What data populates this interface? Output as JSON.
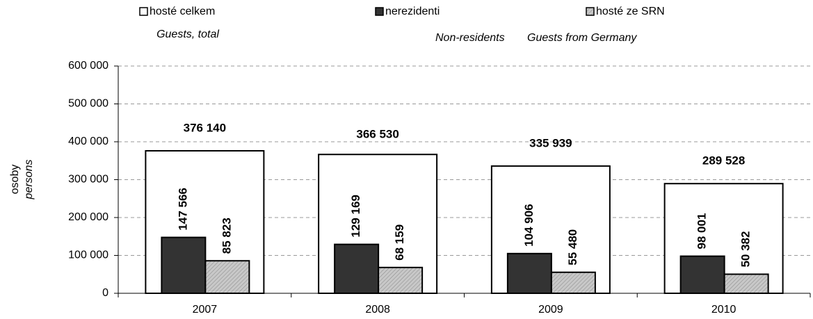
{
  "chart_data": {
    "type": "bar",
    "ylabel": "osoby",
    "ylabel_en": "persons",
    "categories": [
      "2007",
      "2008",
      "2009",
      "2010"
    ],
    "series": [
      {
        "name": "hosté celkem",
        "name_en": "Guests, total",
        "color": "#ffffff",
        "values": [
          376140,
          366530,
          335939,
          289528
        ],
        "value_labels": [
          "376 140",
          "366 530",
          "335 939",
          "289 528"
        ]
      },
      {
        "name": "nerezidenti",
        "name_en": "Non-residents",
        "color": "#333333",
        "values": [
          147566,
          129169,
          104906,
          98001
        ],
        "value_labels": [
          "147 566",
          "129 169",
          "104 906",
          "98 001"
        ]
      },
      {
        "name": "hosté ze SRN",
        "name_en": "Guests from Germany",
        "color": "#c8c8c8",
        "values": [
          85823,
          68159,
          55480,
          50382
        ],
        "value_labels": [
          "85 823",
          "68 159",
          "55 480",
          "50 382"
        ]
      }
    ],
    "ylim": [
      0,
      600000
    ],
    "yticks": [
      0,
      {
        "value": 100000,
        "label": "100 000"
      },
      {
        "value": 200000,
        "label": "200 000"
      },
      {
        "value": 300000,
        "label": "300 000"
      },
      {
        "value": 400000,
        "label": "400 000"
      },
      {
        "value": 500000,
        "label": "500 000"
      },
      {
        "value": 600000,
        "label": "600 000"
      }
    ],
    "grid": true
  }
}
